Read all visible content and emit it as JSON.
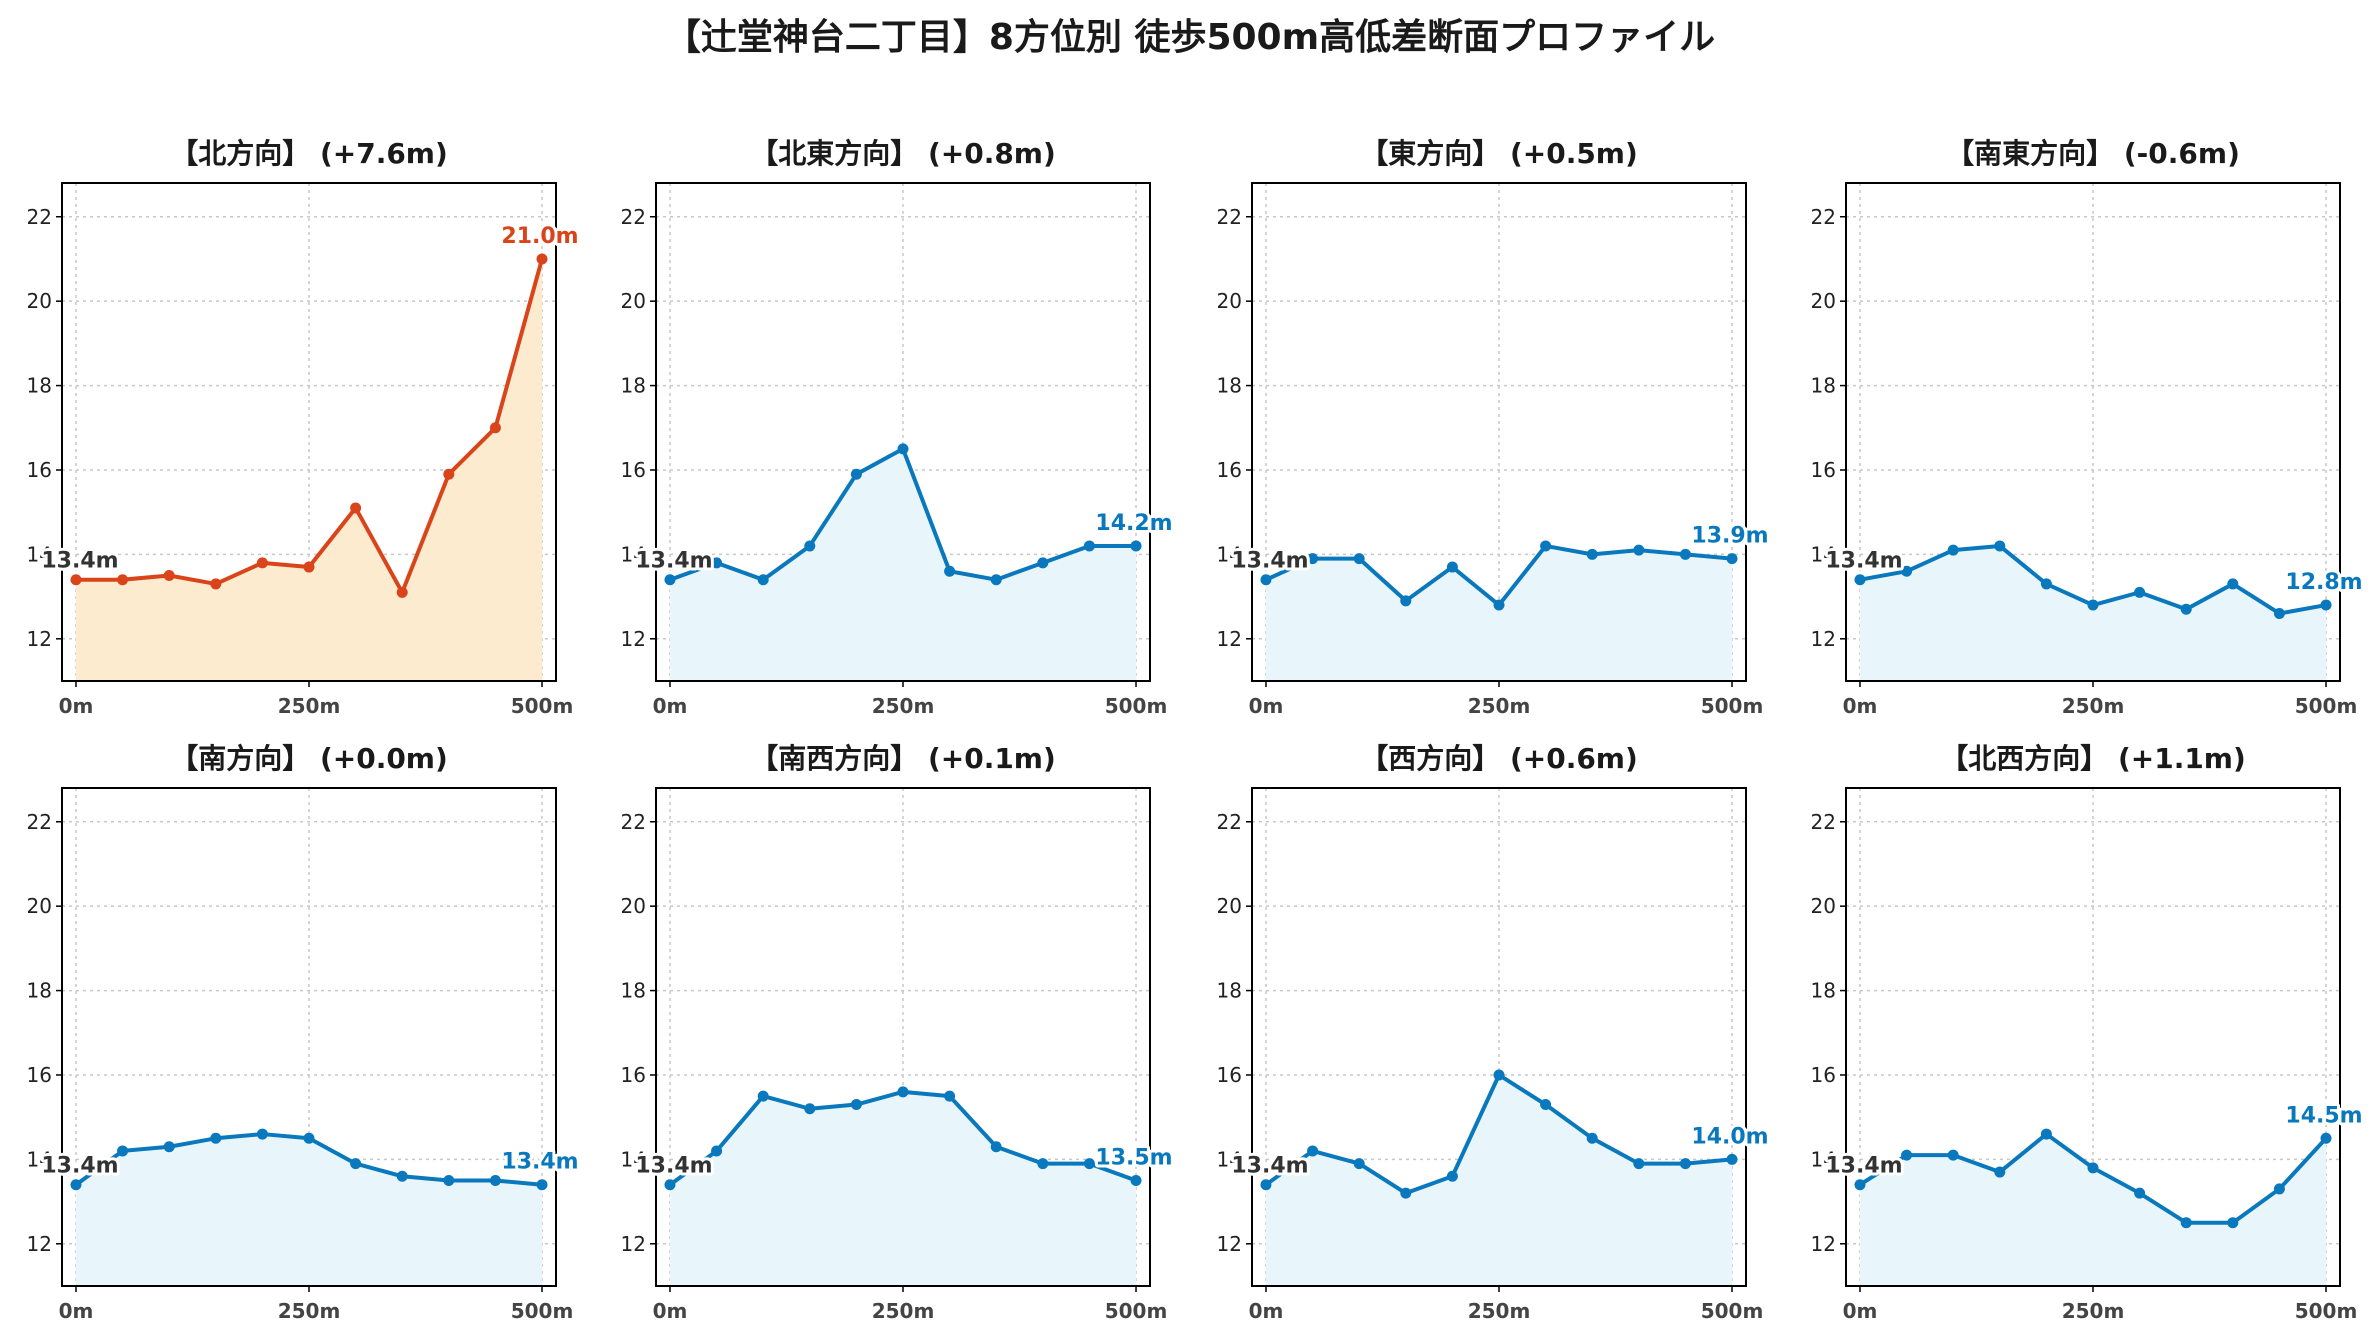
{
  "title": "【辻堂神台二丁目】8方位別 徒歩500m高低差断面プロファイル",
  "colors": {
    "rise_line": "#d9441a",
    "rise_fill": "#fdebd0",
    "normal_line": "#0a78bd",
    "normal_fill": "#e8f6fc",
    "grid": "#c8c8c8"
  },
  "chart_data": [
    {
      "type": "area",
      "title": "【北方向】 (+7.6m)",
      "x": [
        0,
        50,
        100,
        150,
        200,
        250,
        300,
        350,
        400,
        450,
        500
      ],
      "values": [
        13.4,
        13.4,
        13.5,
        13.3,
        13.8,
        13.7,
        15.1,
        13.1,
        15.9,
        17.0,
        21.0
      ],
      "start_label": "13.4m",
      "end_label": "21.0m",
      "highlight": true,
      "xticks": [
        "0m",
        "250m",
        "500m"
      ],
      "yticks": [
        12,
        14,
        16,
        18,
        20,
        22
      ],
      "ylim": [
        11,
        22.8
      ],
      "grid": true
    },
    {
      "type": "area",
      "title": "【北東方向】 (+0.8m)",
      "x": [
        0,
        50,
        100,
        150,
        200,
        250,
        300,
        350,
        400,
        450,
        500
      ],
      "values": [
        13.4,
        13.8,
        13.4,
        14.2,
        15.9,
        16.5,
        13.6,
        13.4,
        13.8,
        14.2,
        14.2
      ],
      "start_label": "13.4m",
      "end_label": "14.2m",
      "highlight": false,
      "xticks": [
        "0m",
        "250m",
        "500m"
      ],
      "yticks": [
        12,
        14,
        16,
        18,
        20,
        22
      ],
      "ylim": [
        11,
        22.8
      ],
      "grid": true
    },
    {
      "type": "area",
      "title": "【東方向】 (+0.5m)",
      "x": [
        0,
        50,
        100,
        150,
        200,
        250,
        300,
        350,
        400,
        450,
        500
      ],
      "values": [
        13.4,
        13.9,
        13.9,
        12.9,
        13.7,
        12.8,
        14.2,
        14.0,
        14.1,
        14.0,
        13.9
      ],
      "start_label": "13.4m",
      "end_label": "13.9m",
      "highlight": false,
      "xticks": [
        "0m",
        "250m",
        "500m"
      ],
      "yticks": [
        12,
        14,
        16,
        18,
        20,
        22
      ],
      "ylim": [
        11,
        22.8
      ],
      "grid": true
    },
    {
      "type": "area",
      "title": "【南東方向】 (-0.6m)",
      "x": [
        0,
        50,
        100,
        150,
        200,
        250,
        300,
        350,
        400,
        450,
        500
      ],
      "values": [
        13.4,
        13.6,
        14.1,
        14.2,
        13.3,
        12.8,
        13.1,
        12.7,
        13.3,
        12.6,
        12.8
      ],
      "start_label": "13.4m",
      "end_label": "12.8m",
      "highlight": false,
      "xticks": [
        "0m",
        "250m",
        "500m"
      ],
      "yticks": [
        12,
        14,
        16,
        18,
        20,
        22
      ],
      "ylim": [
        11,
        22.8
      ],
      "grid": true
    },
    {
      "type": "area",
      "title": "【南方向】 (+0.0m)",
      "x": [
        0,
        50,
        100,
        150,
        200,
        250,
        300,
        350,
        400,
        450,
        500
      ],
      "values": [
        13.4,
        14.2,
        14.3,
        14.5,
        14.6,
        14.5,
        13.9,
        13.6,
        13.5,
        13.5,
        13.4
      ],
      "start_label": "13.4m",
      "end_label": "13.4m",
      "highlight": false,
      "xticks": [
        "0m",
        "250m",
        "500m"
      ],
      "yticks": [
        12,
        14,
        16,
        18,
        20,
        22
      ],
      "ylim": [
        11,
        22.8
      ],
      "grid": true
    },
    {
      "type": "area",
      "title": "【南西方向】 (+0.1m)",
      "x": [
        0,
        50,
        100,
        150,
        200,
        250,
        300,
        350,
        400,
        450,
        500
      ],
      "values": [
        13.4,
        14.2,
        15.5,
        15.2,
        15.3,
        15.6,
        15.5,
        14.3,
        13.9,
        13.9,
        13.5
      ],
      "start_label": "13.4m",
      "end_label": "13.5m",
      "highlight": false,
      "xticks": [
        "0m",
        "250m",
        "500m"
      ],
      "yticks": [
        12,
        14,
        16,
        18,
        20,
        22
      ],
      "ylim": [
        11,
        22.8
      ],
      "grid": true
    },
    {
      "type": "area",
      "title": "【西方向】 (+0.6m)",
      "x": [
        0,
        50,
        100,
        150,
        200,
        250,
        300,
        350,
        400,
        450,
        500
      ],
      "values": [
        13.4,
        14.2,
        13.9,
        13.2,
        13.6,
        16.0,
        15.3,
        14.5,
        13.9,
        13.9,
        14.0
      ],
      "start_label": "13.4m",
      "end_label": "14.0m",
      "highlight": false,
      "xticks": [
        "0m",
        "250m",
        "500m"
      ],
      "yticks": [
        12,
        14,
        16,
        18,
        20,
        22
      ],
      "ylim": [
        11,
        22.8
      ],
      "grid": true
    },
    {
      "type": "area",
      "title": "【北西方向】 (+1.1m)",
      "x": [
        0,
        50,
        100,
        150,
        200,
        250,
        300,
        350,
        400,
        450,
        500
      ],
      "values": [
        13.4,
        14.1,
        14.1,
        13.7,
        14.6,
        13.8,
        13.2,
        12.5,
        12.5,
        13.3,
        14.5
      ],
      "start_label": "13.4m",
      "end_label": "14.5m",
      "highlight": false,
      "xticks": [
        "0m",
        "250m",
        "500m"
      ],
      "yticks": [
        12,
        14,
        16,
        18,
        20,
        22
      ],
      "ylim": [
        11,
        22.8
      ],
      "grid": true
    }
  ]
}
